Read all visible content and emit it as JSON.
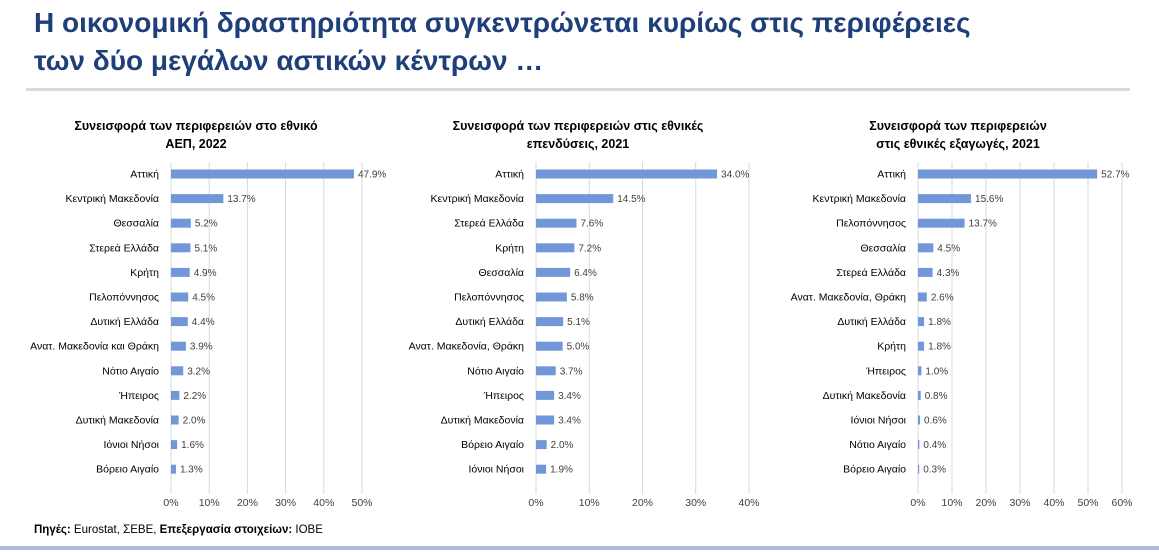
{
  "page": {
    "title": "Η οικονομική δραστηριότητα συγκεντρώνεται κυρίως στις περιφέρειες\nτων δύο μεγάλων αστικών κέντρων …",
    "source_label": "Πηγές:",
    "source_text": " Eurostat, ΣΕΒΕ, ",
    "processing_label": "Επεξεργασία στοιχείων:",
    "processing_text": " ΙΟΒΕ",
    "bar_color": "#7297d8",
    "title_color": "#1f3f7a"
  },
  "chart_data": [
    {
      "type": "bar",
      "orientation": "horizontal",
      "title_lines": [
        "Συνεισφορά των περιφερειών στο εθνικό",
        "ΑΕΠ, 2022"
      ],
      "categories": [
        "Αττική",
        "Κεντρική Μακεδονία",
        "Θεσσαλία",
        "Στερεά Ελλάδα",
        "Κρήτη",
        "Πελοπόννησος",
        "Δυτική Ελλάδα",
        "Ανατ. Μακεδονία και Θράκη",
        "Νότιο Αιγαίο",
        "Ήπειρος",
        "Δυτική Μακεδονία",
        "Ιόνιοι Νήσοι",
        "Βόρειο Αιγαίο"
      ],
      "values": [
        47.9,
        13.7,
        5.2,
        5.1,
        4.9,
        4.5,
        4.4,
        3.9,
        3.2,
        2.2,
        2.0,
        1.6,
        1.3
      ],
      "value_labels": [
        "47.9%",
        "13.7%",
        "5.2%",
        "5.1%",
        "4.9%",
        "4.5%",
        "4.4%",
        "3.9%",
        "3.2%",
        "2.2%",
        "2.0%",
        "1.6%",
        "1.3%"
      ],
      "xlim": [
        0,
        50
      ],
      "xticks": [
        "0%",
        "10%",
        "20%",
        "30%",
        "40%",
        "50%"
      ],
      "grid": true
    },
    {
      "type": "bar",
      "orientation": "horizontal",
      "title_lines": [
        "Συνεισφορά των περιφερειών στις εθνικές",
        "επενδύσεις, 2021"
      ],
      "categories": [
        "Αττική",
        "Κεντρική Μακεδονία",
        "Στερεά Ελλάδα",
        "Κρήτη",
        "Θεσσαλία",
        "Πελοπόννησος",
        "Δυτική Ελλάδα",
        "Ανατ. Μακεδονία, Θράκη",
        "Νότιο Αιγαίο",
        "Ήπειρος",
        "Δυτική Μακεδονία",
        "Βόρειο Αιγαίο",
        "Ιόνιοι Νήσοι"
      ],
      "values": [
        34.0,
        14.5,
        7.6,
        7.2,
        6.4,
        5.8,
        5.1,
        5.0,
        3.7,
        3.4,
        3.4,
        2.0,
        1.9
      ],
      "value_labels": [
        "34.0%",
        "14.5%",
        "7.6%",
        "7.2%",
        "6.4%",
        "5.8%",
        "5.1%",
        "5.0%",
        "3.7%",
        "3.4%",
        "3.4%",
        "2.0%",
        "1.9%"
      ],
      "xlim": [
        0,
        40
      ],
      "xticks": [
        "0%",
        "10%",
        "20%",
        "30%",
        "40%"
      ],
      "grid": true
    },
    {
      "type": "bar",
      "orientation": "horizontal",
      "title_lines": [
        "Συνεισφορά των περιφερειών",
        "στις εθνικές εξαγωγές, 2021"
      ],
      "categories": [
        "Αττική",
        "Κεντρική Μακεδονία",
        "Πελοπόννησος",
        "Θεσσαλία",
        "Στερεά Ελλάδα",
        "Ανατ. Μακεδονία, Θράκη",
        "Δυτική Ελλάδα",
        "Κρήτη",
        "Ήπειρος",
        "Δυτική Μακεδονία",
        "Ιόνιοι Νήσοι",
        "Νότιο Αιγαίο",
        "Βόρειο Αιγαίο"
      ],
      "values": [
        52.7,
        15.6,
        13.7,
        4.5,
        4.3,
        2.6,
        1.8,
        1.8,
        1.0,
        0.8,
        0.6,
        0.4,
        0.3
      ],
      "value_labels": [
        "52.7%",
        "15.6%",
        "13.7%",
        "4.5%",
        "4.3%",
        "2.6%",
        "1.8%",
        "1.8%",
        "1.0%",
        "0.8%",
        "0.6%",
        "0.4%",
        "0.3%"
      ],
      "xlim": [
        0,
        60
      ],
      "xticks": [
        "0%",
        "10%",
        "20%",
        "30%",
        "40%",
        "50%",
        "60%"
      ],
      "grid": true
    }
  ]
}
